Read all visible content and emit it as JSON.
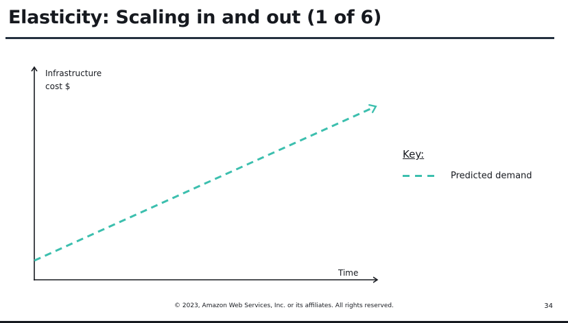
{
  "slide": {
    "title": "Elasticity: Scaling in and out (1 of 6)",
    "page_number": "34",
    "footer": "© 2023, Amazon Web Services, Inc. or its affiliates. All rights reserved."
  },
  "colors": {
    "accent_line": "#3cbfae",
    "title_rule": "#232f3e",
    "text": "#16191f"
  },
  "chart_data": {
    "type": "line",
    "title": "",
    "ylabel_lines": [
      "Infrastructure",
      "cost $"
    ],
    "xlabel": "Time",
    "xlim": [
      0,
      1
    ],
    "ylim": [
      0,
      1
    ],
    "grid": false,
    "series": [
      {
        "name": "Predicted demand",
        "style": "dashed",
        "x": [
          0,
          1
        ],
        "y": [
          0.1,
          0.9
        ]
      }
    ],
    "legend": {
      "title": "Key:",
      "placement": "right"
    }
  }
}
